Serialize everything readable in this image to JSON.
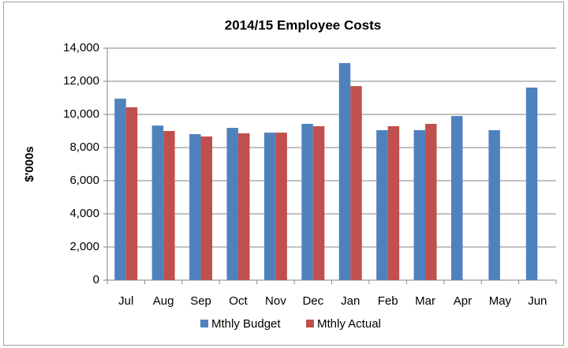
{
  "chart_data": {
    "type": "bar",
    "title": "2014/15 Employee Costs",
    "y_label": "$'000s",
    "categories": [
      "Jul",
      "Aug",
      "Sep",
      "Oct",
      "Nov",
      "Dec",
      "Jan",
      "Feb",
      "Mar",
      "Apr",
      "May",
      "Jun"
    ],
    "series": [
      {
        "name": "Mthly Budget",
        "color": "#4f81bd",
        "values": [
          10950,
          9330,
          8810,
          9190,
          8900,
          9430,
          13100,
          9050,
          9050,
          9900,
          9050,
          11620
        ]
      },
      {
        "name": "Mthly Actual",
        "color": "#c0504d",
        "values": [
          10430,
          9000,
          8670,
          8860,
          8900,
          9290,
          11710,
          9290,
          9430,
          null,
          null,
          null
        ]
      }
    ],
    "ylim": [
      0,
      14000
    ],
    "yticks": [
      0,
      {
        "value": 2000,
        "label": "2,000"
      },
      {
        "value": 4000,
        "label": "4,000"
      },
      {
        "value": 6000,
        "label": "6,000"
      },
      {
        "value": 8000,
        "label": "8,000"
      },
      {
        "value": 10000,
        "label": "10,000"
      },
      {
        "value": 12000,
        "label": "12,000"
      },
      {
        "value": 14000,
        "label": "14,000"
      }
    ],
    "grid": true,
    "legend": "bottom"
  }
}
